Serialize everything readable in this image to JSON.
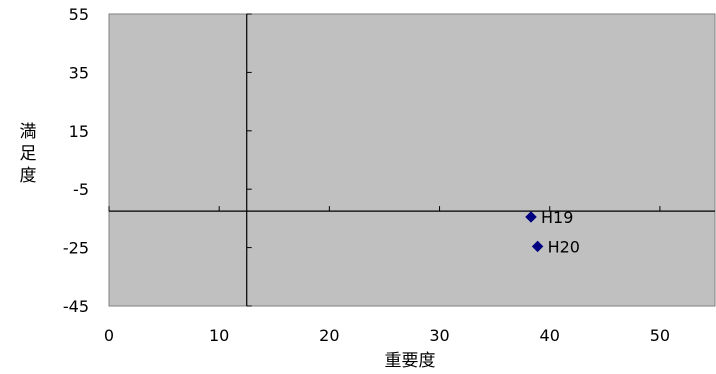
{
  "chart_data": {
    "type": "scatter",
    "title": "",
    "xlabel": "重要度",
    "ylabel": "満足度",
    "xlim": [
      0,
      55
    ],
    "ylim": [
      -45,
      55
    ],
    "x_ticks": [
      0,
      10,
      20,
      30,
      40,
      50
    ],
    "y_ticks": [
      55,
      35,
      15,
      -5,
      -25,
      -45
    ],
    "x_tick_labels": [
      "0",
      "10",
      "20",
      "30",
      "40",
      "50"
    ],
    "y_tick_labels": [
      "55",
      "35",
      "15",
      "-5",
      "-25",
      "-45"
    ],
    "crosshair": {
      "x": 12.5,
      "y": -12.5
    },
    "grid": false,
    "legend": "none",
    "colors": {
      "plot_background": "#c0c0c0",
      "marker": "#000080",
      "axis": "#000000"
    },
    "points": [
      {
        "label": "H19",
        "x": 38.3,
        "y": -14.5
      },
      {
        "label": "H20",
        "x": 38.9,
        "y": -24.6
      }
    ]
  }
}
